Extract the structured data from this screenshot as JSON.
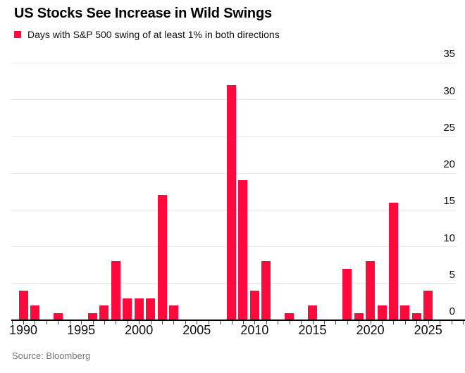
{
  "header": {
    "title": "US Stocks See Increase in Wild Swings",
    "legend_label": "Days with S&P 500 swing of at least 1% in both directions"
  },
  "source_note": "Source: Bloomberg",
  "colors": {
    "bar": "#ff0a3c",
    "gridline": "#e5e5e5",
    "axis": "#000000",
    "tick": "#4d4d4d",
    "label_text": "#0e0e0e",
    "source_text": "#757575"
  },
  "chart_data": {
    "type": "bar",
    "title": "US Stocks See Increase in Wild Swings",
    "legend": [
      "Days with S&P 500 swing of at least 1% in both directions"
    ],
    "legend_position": "top-left",
    "categories": [
      1990,
      1991,
      1992,
      1993,
      1994,
      1995,
      1996,
      1997,
      1998,
      1999,
      2000,
      2001,
      2002,
      2003,
      2004,
      2005,
      2006,
      2007,
      2008,
      2009,
      2010,
      2011,
      2012,
      2013,
      2014,
      2015,
      2016,
      2017,
      2018,
      2019,
      2020,
      2021,
      2022,
      2023,
      2024,
      2025
    ],
    "values": [
      4,
      2,
      0,
      1,
      0,
      0,
      1,
      2,
      8,
      3,
      3,
      3,
      17,
      2,
      0,
      0,
      0,
      0,
      32,
      19,
      4,
      8,
      0,
      1,
      0,
      2,
      0,
      0,
      7,
      1,
      8,
      2,
      16,
      2,
      1,
      4
    ],
    "xlabel": "",
    "ylabel": "",
    "ylim": [
      0,
      35
    ],
    "y_ticks": [
      0,
      5,
      10,
      15,
      20,
      25,
      30,
      35
    ],
    "y_axis_side": "right",
    "x_tick_labels": [
      "1990",
      "1995",
      "2000",
      "2005",
      "2010",
      "2015",
      "2020",
      "2025"
    ],
    "grid": "horizontal",
    "source": "Source: Bloomberg"
  }
}
